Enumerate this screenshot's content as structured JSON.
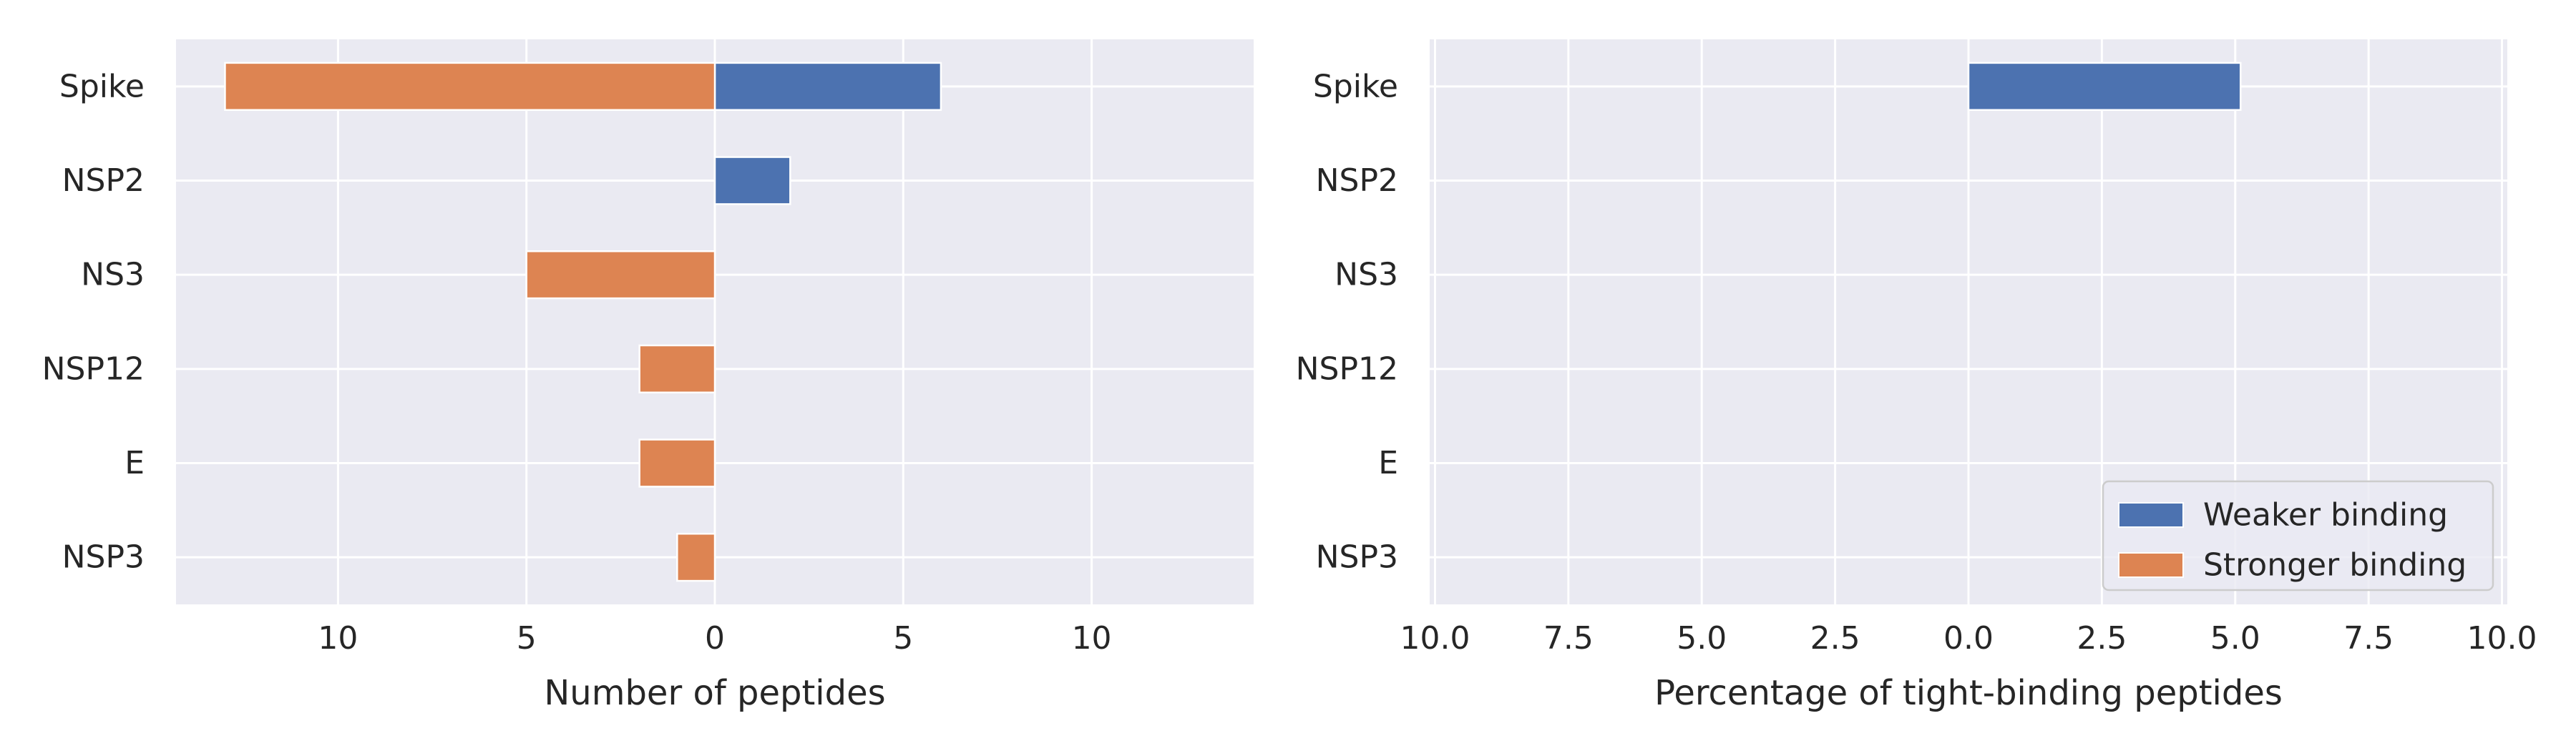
{
  "chart_data": [
    {
      "type": "bar",
      "orientation": "horizontal",
      "categories": [
        "Spike",
        "NSP2",
        "NS3",
        "NSP12",
        "E",
        "NSP3"
      ],
      "series": [
        {
          "name": "Weaker binding",
          "color": "#4c72b0",
          "values": [
            6,
            2,
            0,
            0,
            0,
            0
          ]
        },
        {
          "name": "Stronger binding",
          "color": "#dd8452",
          "values": [
            -13,
            0,
            -5,
            -2,
            -2,
            -1
          ]
        }
      ],
      "xlabel": "Number of peptides",
      "xlim": [
        -14.3,
        14.3
      ],
      "xticks": [
        -10,
        -5,
        0,
        5,
        10
      ],
      "xtick_labels": [
        "10",
        "5",
        "0",
        "5",
        "10"
      ],
      "grid": true,
      "legend": false
    },
    {
      "type": "bar",
      "orientation": "horizontal",
      "categories": [
        "Spike",
        "NSP2",
        "NS3",
        "NSP12",
        "E",
        "NSP3"
      ],
      "series": [
        {
          "name": "Weaker binding",
          "color": "#4c72b0",
          "values": [
            5.1,
            0,
            0,
            0,
            0,
            0
          ]
        },
        {
          "name": "Stronger binding",
          "color": "#dd8452",
          "values": [
            0,
            0,
            0,
            0,
            0,
            0
          ]
        }
      ],
      "xlabel": "Percentage of tight-binding peptides",
      "xlim": [
        -10.1,
        10.1
      ],
      "xticks": [
        -10,
        -7.5,
        -5,
        -2.5,
        0,
        2.5,
        5,
        7.5,
        10
      ],
      "xtick_labels": [
        "10.0",
        "7.5",
        "5.0",
        "2.5",
        "0.0",
        "2.5",
        "5.0",
        "7.5",
        "10.0"
      ],
      "grid": true,
      "legend": true,
      "legend_position": "lower-right"
    }
  ],
  "theme": {
    "axes_bg": "#eaeaf2",
    "grid_color": "#ffffff",
    "text_color": "#262626"
  }
}
